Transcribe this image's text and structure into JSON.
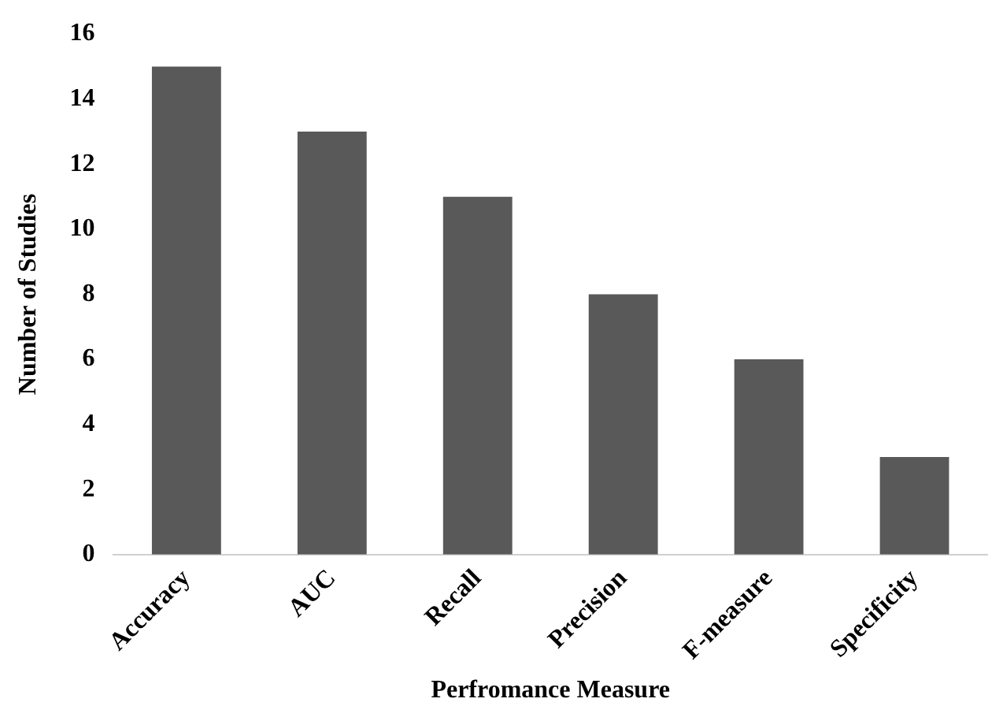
{
  "chart_data": {
    "type": "bar",
    "xlabel": "Perfromance Measure",
    "ylabel": "Number of Studies",
    "categories": [
      "Accuracy",
      "AUC",
      "Recall",
      "Precision",
      "F-measure",
      "Specificity"
    ],
    "values": [
      15,
      13,
      11,
      8,
      6,
      3
    ],
    "color": "#595959",
    "ylim": [
      0,
      16
    ],
    "yticks": [
      0,
      2,
      4,
      6,
      8,
      10,
      12,
      14,
      16
    ],
    "grid": false,
    "legend": false
  }
}
